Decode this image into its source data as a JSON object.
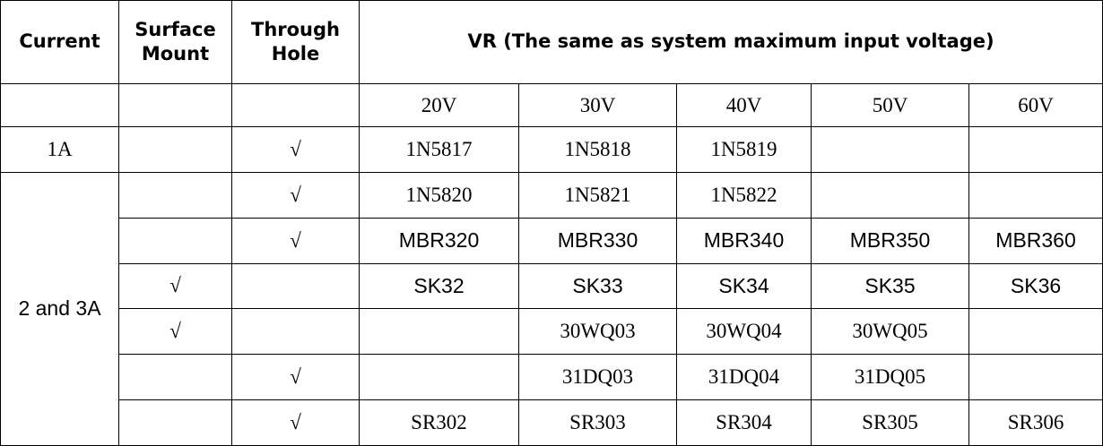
{
  "header": {
    "current": "Current",
    "surface_mount": "Surface Mount",
    "through_hole": "Through Hole",
    "vr": "VR (The same as system maximum input voltage)"
  },
  "voltages": [
    "20V",
    "30V",
    "40V",
    "50V",
    "60V"
  ],
  "groups": [
    {
      "current": "1A",
      "rows": [
        {
          "surface_mount": null,
          "through_hole": "√",
          "parts": [
            "1N5817",
            "1N5818",
            "1N5819",
            null,
            null
          ]
        }
      ]
    },
    {
      "current": "2 and 3A",
      "rows": [
        {
          "surface_mount": null,
          "through_hole": "√",
          "parts": [
            "1N5820",
            "1N5821",
            "1N5822",
            null,
            null
          ]
        },
        {
          "surface_mount": null,
          "through_hole": "√",
          "parts": [
            "MBR320",
            "MBR330",
            "MBR340",
            "MBR350",
            "MBR360"
          ]
        },
        {
          "surface_mount": "√",
          "through_hole": null,
          "parts": [
            "SK32",
            "SK33",
            "SK34",
            "SK35",
            "SK36"
          ]
        },
        {
          "surface_mount": "√",
          "through_hole": null,
          "parts": [
            null,
            "30WQ03",
            "30WQ04",
            "30WQ05",
            null
          ]
        },
        {
          "surface_mount": null,
          "through_hole": "√",
          "parts": [
            null,
            "31DQ03",
            "31DQ04",
            "31DQ05",
            null
          ]
        },
        {
          "surface_mount": null,
          "through_hole": "√",
          "parts": [
            "SR302",
            "SR303",
            "SR304",
            "SR305",
            "SR306"
          ]
        }
      ]
    }
  ]
}
